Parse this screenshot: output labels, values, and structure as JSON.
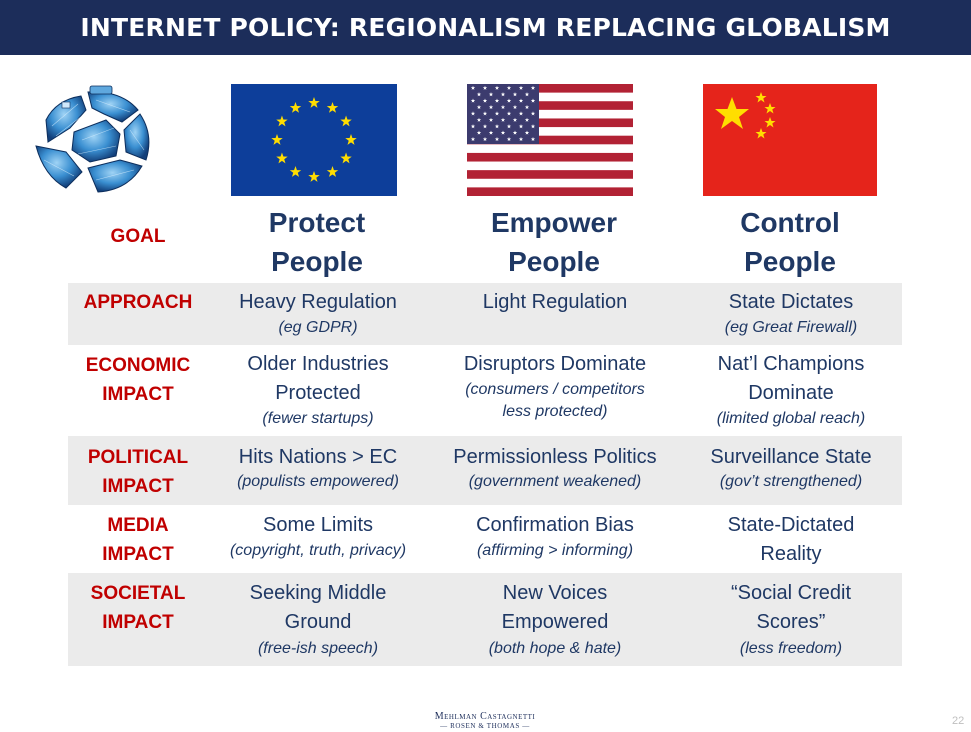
{
  "title": "INTERNET POLICY: REGIONALISM REPLACING GLOBALISM",
  "colors": {
    "title_bar": "#1c2d5a",
    "label_red": "#c00000",
    "text_navy": "#1f3864",
    "row_shade": "#ebebeb"
  },
  "icons": {
    "globe": "cracked-globe-icon",
    "eu": "eu-flag-icon",
    "us": "us-flag-icon",
    "cn": "china-flag-icon"
  },
  "goal": {
    "label": "GOAL",
    "eu": [
      "Protect",
      "People"
    ],
    "us": [
      "Empower",
      "People"
    ],
    "cn": [
      "Control",
      "People"
    ]
  },
  "rows": [
    {
      "label": [
        "APPROACH"
      ],
      "eu": {
        "main": [
          "Heavy Regulation"
        ],
        "sub": [
          "(eg GDPR)"
        ]
      },
      "us": {
        "main": [
          "Light Regulation"
        ],
        "sub": []
      },
      "cn": {
        "main": [
          "State Dictates"
        ],
        "sub": [
          "(eg Great Firewall)"
        ]
      }
    },
    {
      "label": [
        "ECONOMIC",
        "IMPACT"
      ],
      "eu": {
        "main": [
          "Older Industries",
          "Protected"
        ],
        "sub": [
          "(fewer startups)"
        ]
      },
      "us": {
        "main": [
          "Disruptors Dominate"
        ],
        "sub": [
          "(consumers / competitors",
          "less protected)"
        ]
      },
      "cn": {
        "main": [
          "Nat’l Champions",
          "Dominate"
        ],
        "sub": [
          "(limited global reach)"
        ]
      }
    },
    {
      "label": [
        "POLITICAL",
        "IMPACT"
      ],
      "eu": {
        "main": [
          "Hits Nations > EC"
        ],
        "sub": [
          "(populists empowered)"
        ]
      },
      "us": {
        "main": [
          "Permissionless Politics"
        ],
        "sub": [
          "(government weakened)"
        ]
      },
      "cn": {
        "main": [
          "Surveillance State"
        ],
        "sub": [
          "(gov’t strengthened)"
        ]
      }
    },
    {
      "label": [
        "MEDIA",
        "IMPACT"
      ],
      "eu": {
        "main": [
          "Some Limits"
        ],
        "sub": [
          "(copyright, truth, privacy)"
        ]
      },
      "us": {
        "main": [
          "Confirmation Bias"
        ],
        "sub": [
          "(affirming > informing)"
        ]
      },
      "cn": {
        "main": [
          "State-Dictated",
          "Reality"
        ],
        "sub": []
      }
    },
    {
      "label": [
        "SOCIETAL",
        "IMPACT"
      ],
      "eu": {
        "main": [
          "Seeking Middle",
          "Ground"
        ],
        "sub": [
          "(free-ish speech)"
        ]
      },
      "us": {
        "main": [
          "New Voices",
          "Empowered"
        ],
        "sub": [
          "(both hope & hate)"
        ]
      },
      "cn": {
        "main": [
          "“Social Credit",
          "Scores”"
        ],
        "sub": [
          "(less freedom)"
        ]
      }
    }
  ],
  "footer": {
    "line1": "Mehlman Castagnetti",
    "line2": "Rosen & Thomas",
    "page": "22"
  }
}
